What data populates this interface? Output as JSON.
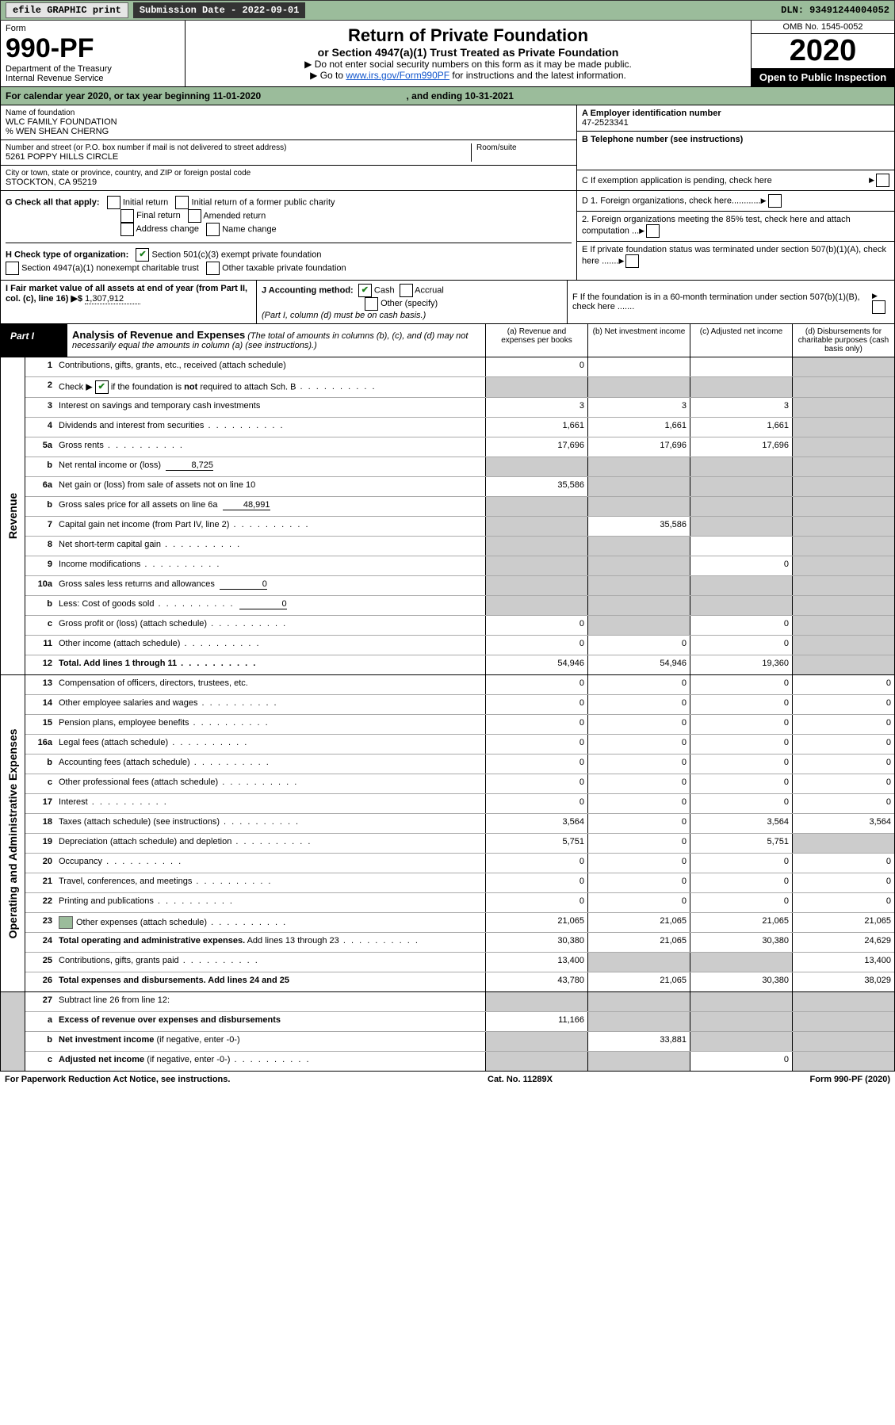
{
  "topbar": {
    "efile_label": "efile GRAPHIC print",
    "submission_label": "Submission Date - 2022-09-01",
    "dln": "DLN: 93491244004052"
  },
  "header": {
    "form_word": "Form",
    "form_number": "990-PF",
    "dept1": "Department of the Treasury",
    "dept2": "Internal Revenue Service",
    "title": "Return of Private Foundation",
    "subtitle": "or Section 4947(a)(1) Trust Treated as Private Foundation",
    "note1": "▶ Do not enter social security numbers on this form as it may be made public.",
    "note2_prefix": "▶ Go to ",
    "note2_link": "www.irs.gov/Form990PF",
    "note2_suffix": " for instructions and the latest information.",
    "omb": "OMB No. 1545-0052",
    "year": "2020",
    "open": "Open to Public Inspection"
  },
  "cal": {
    "text": "For calendar year 2020, or tax year beginning 11-01-2020",
    "ending": ", and ending 10-31-2021"
  },
  "entity": {
    "name_label": "Name of foundation",
    "name": "WLC FAMILY FOUNDATION",
    "care_of": "% WEN SHEAN CHERNG",
    "addr_label": "Number and street (or P.O. box number if mail is not delivered to street address)",
    "addr": "5261 POPPY HILLS CIRCLE",
    "room_label": "Room/suite",
    "city_label": "City or town, state or province, country, and ZIP or foreign postal code",
    "city": "STOCKTON, CA  95219"
  },
  "right_info": {
    "A_label": "A Employer identification number",
    "A_value": "47-2523341",
    "B_label": "B Telephone number (see instructions)",
    "C_label": "C If exemption application is pending, check here",
    "D1_label": "D 1. Foreign organizations, check here............",
    "D2_label": "2. Foreign organizations meeting the 85% test, check here and attach computation ...",
    "E_label": "E  If private foundation status was terminated under section 507(b)(1)(A), check here .......",
    "F_label": "F  If the foundation is in a 60-month termination under section 507(b)(1)(B), check here ......."
  },
  "G": {
    "label": "G Check all that apply:",
    "initial": "Initial return",
    "initial_former": "Initial return of a former public charity",
    "final": "Final return",
    "amended": "Amended return",
    "addr_change": "Address change",
    "name_change": "Name change"
  },
  "H": {
    "label": "H Check type of organization:",
    "c3": "Section 501(c)(3) exempt private foundation",
    "4947": "Section 4947(a)(1) nonexempt charitable trust",
    "other_tax": "Other taxable private foundation"
  },
  "I": {
    "label": "I Fair market value of all assets at end of year (from Part II, col. (c), line 16) ▶$",
    "value": "1,307,912"
  },
  "J": {
    "label": "J Accounting method:",
    "cash": "Cash",
    "accrual": "Accrual",
    "other": "Other (specify)",
    "note": "(Part I, column (d) must be on cash basis.)"
  },
  "part1": {
    "label": "Part I",
    "title": "Analysis of Revenue and Expenses",
    "title_note": "(The total of amounts in columns (b), (c), and (d) may not necessarily equal the amounts in column (a) (see instructions).)",
    "col_a": "(a)   Revenue and expenses per books",
    "col_b": "(b)   Net investment income",
    "col_c": "(c)   Adjusted net income",
    "col_d": "(d)   Disbursements for charitable purposes (cash basis only)"
  },
  "sections": {
    "revenue": "Revenue",
    "opex": "Operating and Administrative Expenses"
  },
  "rows": [
    {
      "n": "1",
      "desc": "Contributions, gifts, grants, etc., received (attach schedule)",
      "a": "0",
      "b": "",
      "c": "",
      "d": "",
      "d_grey": true
    },
    {
      "n": "2",
      "desc": "Check ▶ ☑ if the foundation is <b>not</b> required to attach Sch. B",
      "dots": true,
      "a": "",
      "b": "",
      "c": "",
      "d": "",
      "all_grey": true,
      "cb": true
    },
    {
      "n": "3",
      "desc": "Interest on savings and temporary cash investments",
      "a": "3",
      "b": "3",
      "c": "3",
      "d": "",
      "d_grey": true
    },
    {
      "n": "4",
      "desc": "Dividends and interest from securities",
      "dots": true,
      "a": "1,661",
      "b": "1,661",
      "c": "1,661",
      "d": "",
      "d_grey": true
    },
    {
      "n": "5a",
      "desc": "Gross rents",
      "dots": true,
      "a": "17,696",
      "b": "17,696",
      "c": "17,696",
      "d": "",
      "d_grey": true
    },
    {
      "n": "b",
      "desc": "Net rental income or (loss)",
      "inline": "8,725",
      "a": "",
      "b": "",
      "c": "",
      "d": "",
      "all_grey": true
    },
    {
      "n": "6a",
      "desc": "Net gain or (loss) from sale of assets not on line 10",
      "a": "35,586",
      "b": "",
      "c": "",
      "d": "",
      "bcd_grey": true
    },
    {
      "n": "b",
      "desc": "Gross sales price for all assets on line 6a",
      "inline": "48,991",
      "a": "",
      "b": "",
      "c": "",
      "d": "",
      "all_grey": true
    },
    {
      "n": "7",
      "desc": "Capital gain net income (from Part IV, line 2)",
      "dots": true,
      "a": "",
      "b": "35,586",
      "c": "",
      "d": "",
      "acd_grey": true
    },
    {
      "n": "8",
      "desc": "Net short-term capital gain",
      "dots": true,
      "a": "",
      "b": "",
      "c": "",
      "d": "",
      "abd_grey": true
    },
    {
      "n": "9",
      "desc": "Income modifications",
      "dots": true,
      "a": "",
      "b": "",
      "c": "0",
      "d": "",
      "abd_grey": true
    },
    {
      "n": "10a",
      "desc": "Gross sales less returns and allowances",
      "inline": "0",
      "a": "",
      "b": "",
      "c": "",
      "d": "",
      "all_grey": true
    },
    {
      "n": "b",
      "desc": "Less: Cost of goods sold",
      "inline": "0",
      "dots": true,
      "a": "",
      "b": "",
      "c": "",
      "d": "",
      "all_grey": true
    },
    {
      "n": "c",
      "desc": "Gross profit or (loss) (attach schedule)",
      "dots": true,
      "a": "0",
      "b": "",
      "c": "0",
      "d": "",
      "bd_grey": true
    },
    {
      "n": "11",
      "desc": "Other income (attach schedule)",
      "dots": true,
      "a": "0",
      "b": "0",
      "c": "0",
      "d": "",
      "d_grey": true
    },
    {
      "n": "12",
      "desc": "<b>Total.</b> Add lines 1 through 11",
      "dots": true,
      "a": "54,946",
      "b": "54,946",
      "c": "19,360",
      "d": "",
      "d_grey": true,
      "bold": true
    }
  ],
  "rows2": [
    {
      "n": "13",
      "desc": "Compensation of officers, directors, trustees, etc.",
      "a": "0",
      "b": "0",
      "c": "0",
      "d": "0"
    },
    {
      "n": "14",
      "desc": "Other employee salaries and wages",
      "dots": true,
      "a": "0",
      "b": "0",
      "c": "0",
      "d": "0"
    },
    {
      "n": "15",
      "desc": "Pension plans, employee benefits",
      "dots": true,
      "a": "0",
      "b": "0",
      "c": "0",
      "d": "0"
    },
    {
      "n": "16a",
      "desc": "Legal fees (attach schedule)",
      "dots": true,
      "a": "0",
      "b": "0",
      "c": "0",
      "d": "0"
    },
    {
      "n": "b",
      "desc": "Accounting fees (attach schedule)",
      "dots": true,
      "a": "0",
      "b": "0",
      "c": "0",
      "d": "0"
    },
    {
      "n": "c",
      "desc": "Other professional fees (attach schedule)",
      "dots": true,
      "a": "0",
      "b": "0",
      "c": "0",
      "d": "0"
    },
    {
      "n": "17",
      "desc": "Interest",
      "dots": true,
      "a": "0",
      "b": "0",
      "c": "0",
      "d": "0"
    },
    {
      "n": "18",
      "desc": "Taxes (attach schedule) (see instructions)",
      "dots": true,
      "a": "3,564",
      "b": "0",
      "c": "3,564",
      "d": "3,564"
    },
    {
      "n": "19",
      "desc": "Depreciation (attach schedule) and depletion",
      "dots": true,
      "a": "5,751",
      "b": "0",
      "c": "5,751",
      "d": "",
      "d_grey": true
    },
    {
      "n": "20",
      "desc": "Occupancy",
      "dots": true,
      "a": "0",
      "b": "0",
      "c": "0",
      "d": "0"
    },
    {
      "n": "21",
      "desc": "Travel, conferences, and meetings",
      "dots": true,
      "a": "0",
      "b": "0",
      "c": "0",
      "d": "0"
    },
    {
      "n": "22",
      "desc": "Printing and publications",
      "dots": true,
      "a": "0",
      "b": "0",
      "c": "0",
      "d": "0"
    },
    {
      "n": "23",
      "desc": "Other expenses (attach schedule)",
      "dots": true,
      "icon": true,
      "a": "21,065",
      "b": "21,065",
      "c": "21,065",
      "d": "21,065"
    },
    {
      "n": "24",
      "desc": "<b>Total operating and administrative expenses.</b> Add lines 13 through 23",
      "dots": true,
      "a": "30,380",
      "b": "21,065",
      "c": "30,380",
      "d": "24,629"
    },
    {
      "n": "25",
      "desc": "Contributions, gifts, grants paid",
      "dots": true,
      "a": "13,400",
      "b": "",
      "c": "",
      "d": "13,400",
      "bc_grey": true
    },
    {
      "n": "26",
      "desc": "<b>Total expenses and disbursements.</b> Add lines 24 and 25",
      "a": "43,780",
      "b": "21,065",
      "c": "30,380",
      "d": "38,029",
      "bold": true
    }
  ],
  "rows3": [
    {
      "n": "27",
      "desc": "Subtract line 26 from line 12:",
      "a": "",
      "b": "",
      "c": "",
      "d": "",
      "all_grey": true
    },
    {
      "n": "a",
      "desc": "<b>Excess of revenue over expenses and disbursements</b>",
      "a": "11,166",
      "b": "",
      "c": "",
      "d": "",
      "bcd_grey": true
    },
    {
      "n": "b",
      "desc": "<b>Net investment income</b> (if negative, enter -0-)",
      "a": "",
      "b": "33,881",
      "c": "",
      "d": "",
      "acd_grey": true
    },
    {
      "n": "c",
      "desc": "<b>Adjusted net income</b> (if negative, enter -0-)",
      "dots": true,
      "a": "",
      "b": "",
      "c": "0",
      "d": "",
      "abd_grey": true
    }
  ],
  "footer": {
    "left": "For Paperwork Reduction Act Notice, see instructions.",
    "mid": "Cat. No. 11289X",
    "right": "Form 990-PF (2020)"
  }
}
